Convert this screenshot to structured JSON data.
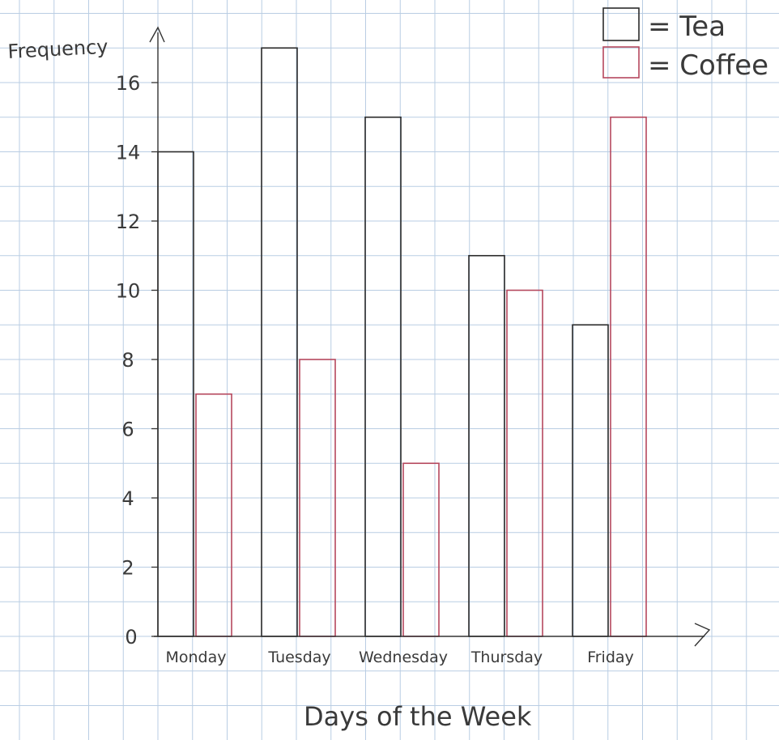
{
  "chart_data": {
    "type": "bar",
    "title": "",
    "xlabel": "Days of the Week",
    "ylabel": "Frequency",
    "categories": [
      "Monday",
      "Tuesday",
      "Wednesday",
      "Thursday",
      "Friday"
    ],
    "series": [
      {
        "name": "Tea",
        "values": [
          14,
          17,
          15,
          11,
          9
        ],
        "color": "#2b2b2b"
      },
      {
        "name": "Coffee",
        "values": [
          7,
          8,
          5,
          10,
          15
        ],
        "color": "#b5485e"
      }
    ],
    "ylim": [
      0,
      18
    ],
    "yticks": [
      0,
      2,
      4,
      6,
      8,
      10,
      12,
      14,
      16
    ],
    "grid": true,
    "legend_position": "top-right",
    "legend": [
      {
        "symbol": "tea-box",
        "label": "= Tea"
      },
      {
        "symbol": "coffee-box",
        "label": "= Coffee"
      }
    ],
    "grid_color": "#b9cde3"
  }
}
